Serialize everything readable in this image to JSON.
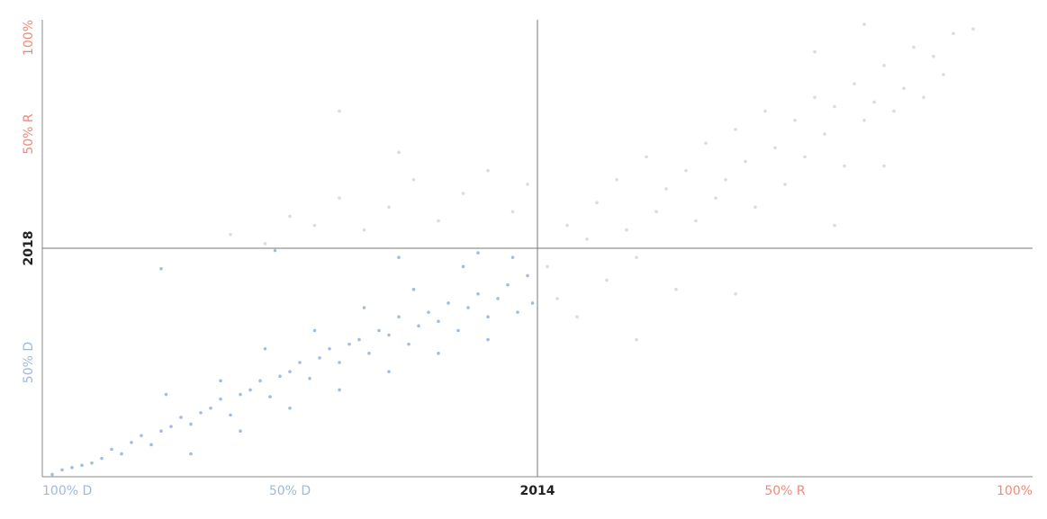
{
  "chart_data": {
    "type": "scatter",
    "xlim": [
      -100,
      100
    ],
    "ylim": [
      -100,
      100
    ],
    "xticks": [
      {
        "value": -100,
        "label": "100% D"
      },
      {
        "value": -50,
        "label": "50% D"
      },
      {
        "value": 0,
        "label": "2014"
      },
      {
        "value": 50,
        "label": "50% R"
      },
      {
        "value": 100,
        "label": "100%"
      }
    ],
    "yticks": [
      {
        "value": -50,
        "label": "50% D"
      },
      {
        "value": 0,
        "label": "2018"
      },
      {
        "value": 50,
        "label": "50% R"
      },
      {
        "value": 100,
        "label": "100%"
      }
    ],
    "series": [
      {
        "color": "#a3bce0",
        "x": [
          -98,
          -96,
          -94,
          -92,
          -90,
          -88,
          -86,
          -84,
          -82,
          -80,
          -78,
          -76,
          -74,
          -72,
          -70,
          -68,
          -66,
          -64,
          -62,
          -60,
          -58,
          -56,
          -54,
          -52,
          -50,
          -48,
          -46,
          -44,
          -42,
          -40,
          -38,
          -36,
          -34,
          -32,
          -30,
          -28,
          -26,
          -24,
          -22,
          -20,
          -18,
          -16,
          -14,
          -12,
          -10,
          -8,
          -6,
          -4,
          -2,
          -1,
          -64,
          -55,
          -45,
          -35,
          -25,
          -15,
          -5,
          -75,
          -70,
          -60,
          -50,
          -40,
          -30,
          -20,
          -10,
          -76,
          -53,
          -28,
          -12
        ],
        "values": [
          -99,
          -97,
          -96,
          -95,
          -94,
          -92,
          -88,
          -90,
          -85,
          -82,
          -86,
          -80,
          -78,
          -74,
          -77,
          -72,
          -70,
          -66,
          -73,
          -64,
          -62,
          -58,
          -65,
          -56,
          -54,
          -50,
          -57,
          -48,
          -44,
          -50,
          -42,
          -40,
          -46,
          -36,
          -38,
          -30,
          -42,
          -34,
          -28,
          -32,
          -24,
          -36,
          -26,
          -20,
          -30,
          -22,
          -16,
          -28,
          -12,
          -24,
          -58,
          -44,
          -36,
          -26,
          -18,
          -8,
          -4,
          -64,
          -90,
          -80,
          -70,
          -62,
          -54,
          -46,
          -40,
          -9,
          -1,
          -4,
          -2
        ]
      },
      {
        "color": "#dcdcdc",
        "x": [
          -62,
          -55,
          -50,
          -45,
          -40,
          -35,
          -30,
          -25,
          -20,
          -15,
          -10,
          -5,
          -2,
          2,
          4,
          6,
          8,
          10,
          12,
          14,
          16,
          18,
          20,
          22,
          24,
          26,
          28,
          30,
          32,
          34,
          36,
          38,
          40,
          42,
          44,
          46,
          48,
          50,
          52,
          54,
          56,
          58,
          60,
          62,
          64,
          66,
          68,
          70,
          72,
          74,
          76,
          78,
          80,
          82,
          84,
          88,
          70,
          60,
          40,
          20,
          -40,
          -28,
          66,
          56
        ],
        "values": [
          6,
          2,
          14,
          10,
          22,
          8,
          18,
          30,
          12,
          24,
          34,
          16,
          28,
          -8,
          -22,
          10,
          -30,
          4,
          20,
          -14,
          30,
          8,
          -4,
          40,
          16,
          26,
          -18,
          34,
          12,
          46,
          22,
          30,
          52,
          38,
          18,
          60,
          44,
          28,
          56,
          40,
          66,
          50,
          62,
          36,
          72,
          56,
          64,
          80,
          60,
          70,
          88,
          66,
          84,
          76,
          94,
          96,
          36,
          10,
          -20,
          -40,
          60,
          42,
          98,
          86
        ]
      }
    ]
  }
}
